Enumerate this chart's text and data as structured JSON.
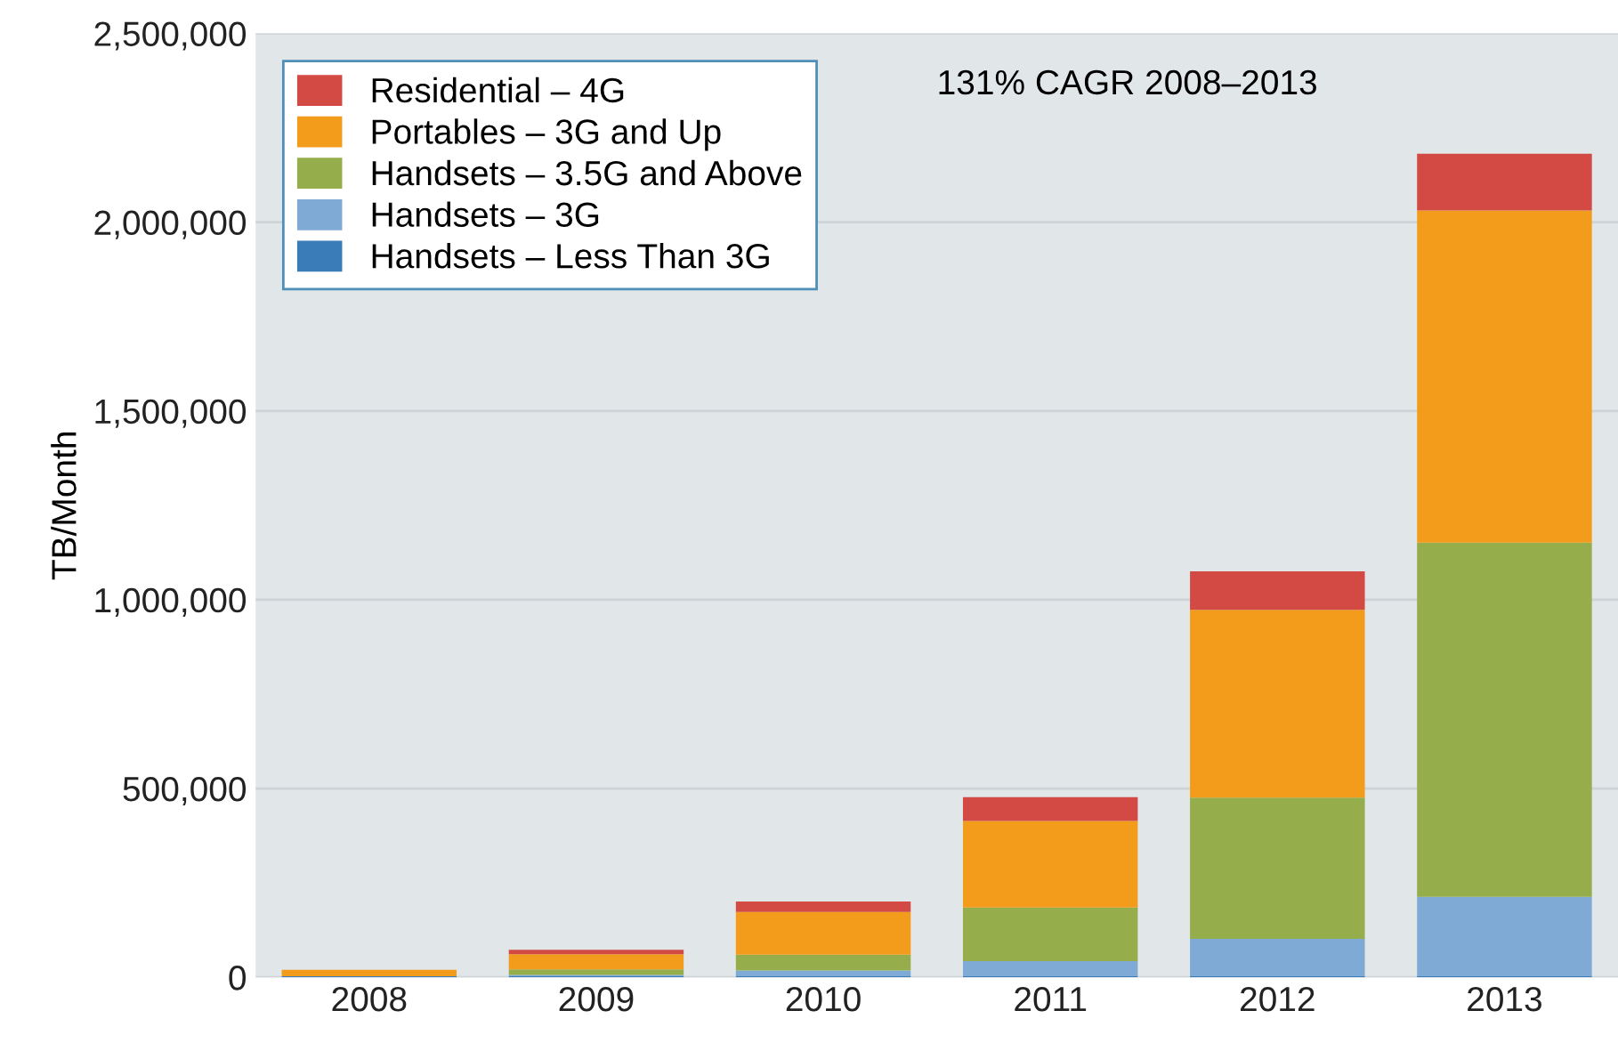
{
  "chart_data": {
    "type": "bar",
    "stacked": true,
    "ylabel": "TB/Month",
    "categories": [
      "2008",
      "2009",
      "2010",
      "2011",
      "2012",
      "2013"
    ],
    "series": [
      {
        "name": "Handsets – Less Than 3G",
        "color": "#3a7cb8",
        "values": [
          3000,
          3000,
          3000,
          3000,
          3000,
          3000
        ]
      },
      {
        "name": "Handsets – 3G",
        "color": "#7eaad5",
        "values": [
          0,
          3000,
          15000,
          40000,
          99000,
          210000
        ]
      },
      {
        "name": "Handsets – 3.5G and Above",
        "color": "#95ad4a",
        "values": [
          0,
          15000,
          42000,
          142000,
          374000,
          938000
        ]
      },
      {
        "name": "Portables – 3G and Up",
        "color": "#f39c1b",
        "values": [
          17000,
          40000,
          113000,
          229000,
          497000,
          880000
        ]
      },
      {
        "name": "Residential – 4G",
        "color": "#d24a43",
        "values": [
          0,
          12000,
          28000,
          63000,
          102000,
          150000
        ]
      }
    ],
    "ylim": [
      0,
      2500000
    ],
    "yticks": [
      {
        "value": 0,
        "label": "0"
      },
      {
        "value": 500000,
        "label": "500,000"
      },
      {
        "value": 1000000,
        "label": "1,000,000"
      },
      {
        "value": 1500000,
        "label": "1,500,000"
      },
      {
        "value": 2000000,
        "label": "2,000,000"
      },
      {
        "value": 2500000,
        "label": "2,500,000"
      }
    ],
    "grid": "y",
    "legend": "top left",
    "annotations": [
      "131% CAGR 2008–2013"
    ]
  }
}
